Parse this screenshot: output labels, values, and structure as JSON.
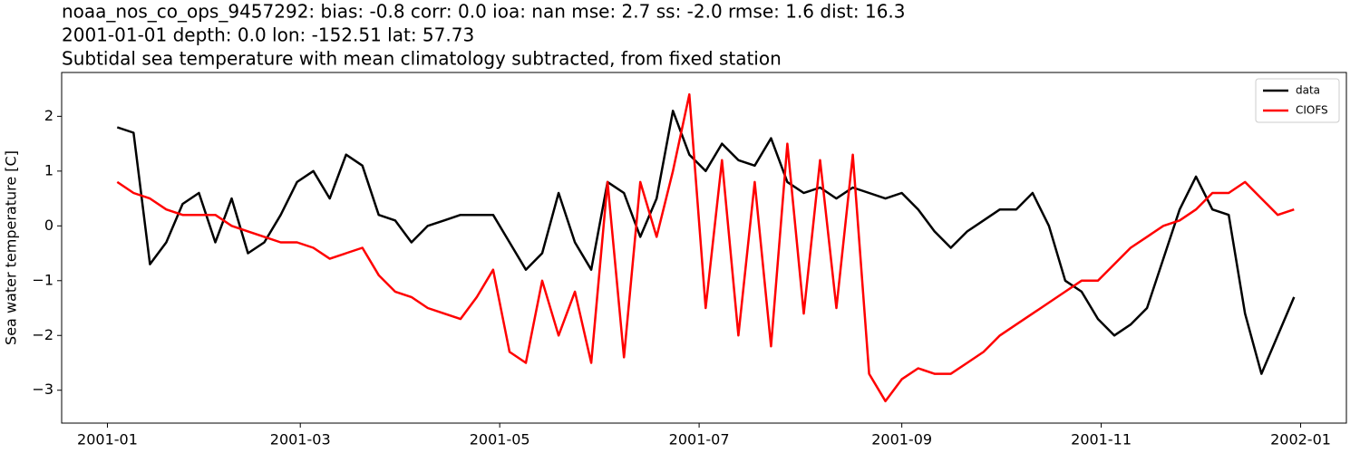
{
  "chart_data": {
    "type": "line",
    "title_lines": [
      "noaa_nos_co_ops_9457292: bias: -0.8  corr: 0.0  ioa: nan  mse: 2.7  ss: -2.0  rmse: 1.6  dist: 16.3",
      "2001-01-01 depth: 0.0 lon: -152.51 lat: 57.73",
      "Subtidal sea temperature with mean climatology subtracted, from fixed station"
    ],
    "ylabel": "Sea water temperature [C]",
    "x": [
      "2001-01-04",
      "2001-01-09",
      "2001-01-14",
      "2001-01-19",
      "2001-01-24",
      "2001-01-29",
      "2001-02-03",
      "2001-02-08",
      "2001-02-13",
      "2001-02-18",
      "2001-02-23",
      "2001-02-28",
      "2001-03-05",
      "2001-03-10",
      "2001-03-15",
      "2001-03-20",
      "2001-03-25",
      "2001-03-30",
      "2001-04-04",
      "2001-04-09",
      "2001-04-14",
      "2001-04-19",
      "2001-04-24",
      "2001-04-29",
      "2001-05-04",
      "2001-05-09",
      "2001-05-14",
      "2001-05-19",
      "2001-05-24",
      "2001-05-29",
      "2001-06-03",
      "2001-06-08",
      "2001-06-13",
      "2001-06-18",
      "2001-06-23",
      "2001-06-28",
      "2001-07-03",
      "2001-07-08",
      "2001-07-13",
      "2001-07-18",
      "2001-07-23",
      "2001-07-28",
      "2001-08-02",
      "2001-08-07",
      "2001-08-12",
      "2001-08-17",
      "2001-08-22",
      "2001-08-27",
      "2001-09-01",
      "2001-09-06",
      "2001-09-11",
      "2001-09-16",
      "2001-09-21",
      "2001-09-26",
      "2001-10-01",
      "2001-10-06",
      "2001-10-11",
      "2001-10-16",
      "2001-10-21",
      "2001-10-26",
      "2001-10-31",
      "2001-11-05",
      "2001-11-10",
      "2001-11-15",
      "2001-11-20",
      "2001-11-25",
      "2001-11-30",
      "2001-12-05",
      "2001-12-10",
      "2001-12-15",
      "2001-12-20",
      "2001-12-25",
      "2001-12-30"
    ],
    "series": [
      {
        "name": "data",
        "color": "#000000",
        "values": [
          1.8,
          1.7,
          -0.7,
          -0.3,
          0.4,
          0.6,
          -0.3,
          0.5,
          -0.5,
          -0.3,
          0.2,
          0.8,
          1.0,
          0.5,
          1.3,
          1.1,
          0.2,
          0.1,
          -0.3,
          0.0,
          0.1,
          0.2,
          0.2,
          0.2,
          -0.3,
          -0.8,
          -0.5,
          0.6,
          -0.3,
          -0.8,
          0.8,
          0.6,
          -0.2,
          0.5,
          2.1,
          1.3,
          1.0,
          1.5,
          1.2,
          1.1,
          1.6,
          0.8,
          0.6,
          0.7,
          0.5,
          0.7,
          0.6,
          0.5,
          0.6,
          0.3,
          -0.1,
          -0.4,
          -0.1,
          0.1,
          0.3,
          0.3,
          0.6,
          0.0,
          -1.0,
          -1.2,
          -1.7,
          -2.0,
          -1.8,
          -1.5,
          -0.6,
          0.3,
          0.9,
          0.3,
          0.2,
          -1.6,
          -2.7,
          -2.0,
          -1.3
        ]
      },
      {
        "name": "CIOFS",
        "color": "#ff0000",
        "values": [
          0.8,
          0.6,
          0.5,
          0.3,
          0.2,
          0.2,
          0.2,
          0.0,
          -0.1,
          -0.2,
          -0.3,
          -0.3,
          -0.4,
          -0.6,
          -0.5,
          -0.4,
          -0.9,
          -1.2,
          -1.3,
          -1.5,
          -1.6,
          -1.7,
          -1.3,
          -0.8,
          -2.3,
          -2.5,
          -1.0,
          -2.0,
          -1.2,
          -2.5,
          0.8,
          -2.4,
          0.8,
          -0.2,
          1.0,
          2.4,
          -1.5,
          1.2,
          -2.0,
          0.8,
          -2.2,
          1.5,
          -1.6,
          1.2,
          -1.5,
          1.3,
          -2.7,
          -3.2,
          -2.8,
          -2.6,
          -2.7,
          -2.7,
          -2.5,
          -2.3,
          -2.0,
          -1.8,
          -1.6,
          -1.4,
          -1.2,
          -1.0,
          -1.0,
          -0.7,
          -0.4,
          -0.2,
          0.0,
          0.1,
          0.3,
          0.6,
          0.6,
          0.8,
          0.5,
          0.2,
          0.3
        ]
      }
    ],
    "xlim": [
      "2000-12-18",
      "2002-01-15"
    ],
    "xticks": [
      {
        "value": "2001-01-01",
        "label": "2001-01"
      },
      {
        "value": "2001-03-01",
        "label": "2001-03"
      },
      {
        "value": "2001-05-01",
        "label": "2001-05"
      },
      {
        "value": "2001-07-01",
        "label": "2001-07"
      },
      {
        "value": "2001-09-01",
        "label": "2001-09"
      },
      {
        "value": "2001-11-01",
        "label": "2001-11"
      },
      {
        "value": "2002-01-01",
        "label": "2002-01"
      }
    ],
    "ylim": [
      -3.6,
      2.8
    ],
    "yticks": [
      {
        "value": -3,
        "label": "−3"
      },
      {
        "value": -2,
        "label": "−2"
      },
      {
        "value": -1,
        "label": "−1"
      },
      0,
      1,
      2
    ],
    "legend": "upper right"
  }
}
